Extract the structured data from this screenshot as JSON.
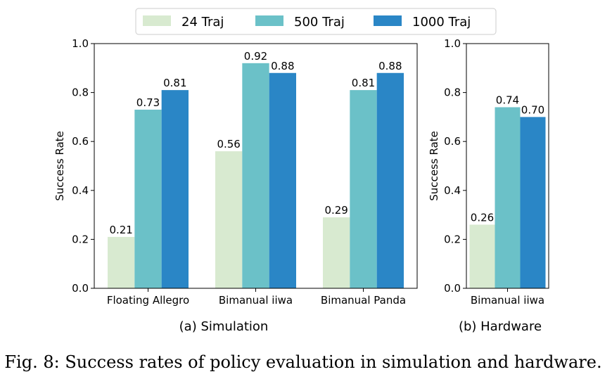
{
  "caption": "Fig. 8: Success rates of policy evaluation in simulation and hardware.",
  "legend": [
    {
      "label": "24 Traj",
      "color": "#d8ead0"
    },
    {
      "label": "500 Traj",
      "color": "#6bc1c8"
    },
    {
      "label": "1000 Traj",
      "color": "#2a86c6"
    }
  ],
  "chart_data": [
    {
      "type": "bar",
      "caption": "(a) Simulation",
      "categories": [
        "Floating Allegro",
        "Bimanual iiwa",
        "Bimanual Panda"
      ],
      "series": [
        {
          "name": "24 Traj",
          "values": [
            0.21,
            0.56,
            0.29
          ],
          "labels": [
            "0.21",
            "0.56",
            "0.29"
          ]
        },
        {
          "name": "500 Traj",
          "values": [
            0.73,
            0.92,
            0.81
          ],
          "labels": [
            "0.73",
            "0.92",
            "0.81"
          ]
        },
        {
          "name": "1000 Traj",
          "values": [
            0.81,
            0.88,
            0.88
          ],
          "labels": [
            "0.81",
            "0.88",
            "0.88"
          ]
        }
      ],
      "ylabel": "Success Rate",
      "ylim": [
        0,
        1.0
      ],
      "yticks": [
        "0.0",
        "0.2",
        "0.4",
        "0.6",
        "0.8",
        "1.0"
      ],
      "grid": false,
      "legend_position": "top-center"
    },
    {
      "type": "bar",
      "caption": "(b) Hardware",
      "categories": [
        "Bimanual iiwa"
      ],
      "series": [
        {
          "name": "24 Traj",
          "values": [
            0.26
          ],
          "labels": [
            "0.26"
          ]
        },
        {
          "name": "500 Traj",
          "values": [
            0.74
          ],
          "labels": [
            "0.74"
          ]
        },
        {
          "name": "1000 Traj",
          "values": [
            0.7
          ],
          "labels": [
            "0.70"
          ]
        }
      ],
      "ylabel": "Success Rate",
      "ylim": [
        0,
        1.0
      ],
      "yticks": [
        "0.0",
        "0.2",
        "0.4",
        "0.6",
        "0.8",
        "1.0"
      ],
      "grid": false
    }
  ]
}
